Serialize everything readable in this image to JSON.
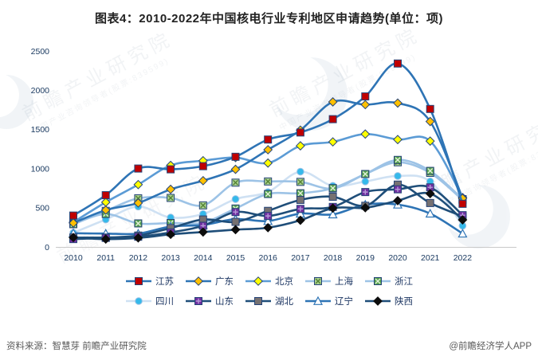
{
  "title": "图表4：2010-2022年中国核电行业专利地区申请趋势(单位：项)",
  "watermark": {
    "main": "前瞻产业研究院",
    "sub": "中国产业咨询领导者(股票:839599)"
  },
  "footer": {
    "source": "资料来源：智慧芽 前瞻产业研究院",
    "credit": "@前瞻经济学人APP"
  },
  "chart_data": {
    "type": "line",
    "title": "图表4：2010-2022年中国核电行业专利地区申请趋势(单位：项)",
    "unit": "项",
    "categories": [
      "2010",
      "2011",
      "2012",
      "2013",
      "2014",
      "2015",
      "2016",
      "2017",
      "2018",
      "2019",
      "2020",
      "2021",
      "2022"
    ],
    "ylim": [
      0,
      2500
    ],
    "yticks": [
      "0",
      "500",
      "1000",
      "1500",
      "2000",
      "2500"
    ],
    "grid": false,
    "legend_position": "bottom",
    "legend_rows": [
      [
        "江苏",
        "广东",
        "北京",
        "上海",
        "浙江"
      ],
      [
        "四川",
        "山东",
        "湖北",
        "辽宁",
        "陕西"
      ]
    ],
    "draw_order": [
      "四川",
      "上海",
      "浙江",
      "北京",
      "辽宁",
      "湖北",
      "山东",
      "陕西",
      "广东",
      "江苏"
    ],
    "series": [
      {
        "name": "江苏",
        "line": "#2e74b5",
        "marker": "square",
        "marker_color": "#c00000",
        "marker_stroke": "#264478",
        "values": [
          400,
          660,
          1000,
          990,
          1030,
          1150,
          1370,
          1460,
          1630,
          1920,
          2340,
          1760,
          550
        ]
      },
      {
        "name": "广东",
        "line": "#2e74b5",
        "marker": "diamond",
        "marker_color": "#ffc000",
        "marker_stroke": "#264478",
        "values": [
          305,
          470,
          560,
          735,
          845,
          990,
          1240,
          1490,
          1850,
          1815,
          1835,
          1600,
          620
        ]
      },
      {
        "name": "北京",
        "line": "#5b9bd5",
        "marker": "diamond",
        "marker_color": "#ffff00",
        "marker_stroke": "#264478",
        "values": [
          315,
          570,
          795,
          1040,
          1100,
          1140,
          1070,
          1290,
          1340,
          1440,
          1370,
          1350,
          630
        ]
      },
      {
        "name": "上海",
        "line": "#9dc3e6",
        "marker": "square-x",
        "marker_color": "#a9d18e",
        "marker_stroke": "#264478",
        "marker_accent": "#548235",
        "values": [
          300,
          460,
          620,
          625,
          530,
          820,
          835,
          830,
          745,
          930,
          1080,
          945,
          600
        ]
      },
      {
        "name": "浙江",
        "line": "#9dc3e6",
        "marker": "square-x",
        "marker_color": "#57a44e",
        "marker_stroke": "#264478",
        "marker_accent": "#e2efda",
        "values": [
          290,
          420,
          300,
          305,
          310,
          490,
          675,
          685,
          750,
          930,
          1110,
          970,
          610
        ]
      },
      {
        "name": "四川",
        "line": "#cfe1f3",
        "marker": "circle",
        "marker_color": "#35b9ea",
        "marker_stroke": "#9dc3e6",
        "values": [
          180,
          350,
          515,
          375,
          420,
          610,
          700,
          960,
          780,
          835,
          905,
          835,
          270
        ]
      },
      {
        "name": "山东",
        "line": "#1f4e79",
        "marker": "square-plus",
        "marker_color": "#7030a0",
        "marker_stroke": "#264478",
        "marker_accent": "#b799d9",
        "values": [
          100,
          115,
          130,
          185,
          270,
          445,
          395,
          485,
          510,
          700,
          735,
          760,
          405
        ]
      },
      {
        "name": "湖北",
        "line": "#1f4e79",
        "marker": "square",
        "marker_color": "#767171",
        "marker_stroke": "#264478",
        "values": [
          120,
          120,
          145,
          240,
          350,
          320,
          460,
          600,
          640,
          525,
          795,
          560,
          390
        ]
      },
      {
        "name": "辽宁",
        "line": "#2e74b5",
        "marker": "triangle",
        "marker_color": "#ffffff",
        "marker_stroke": "#2e74b5",
        "values": [
          175,
          170,
          170,
          260,
          280,
          355,
          330,
          425,
          415,
          540,
          540,
          425,
          170
        ]
      },
      {
        "name": "陕西",
        "line": "#1f4e79",
        "marker": "diamond",
        "marker_color": "#0d0d0d",
        "marker_stroke": "#0d0d0d",
        "values": [
          120,
          100,
          115,
          160,
          190,
          220,
          245,
          340,
          495,
          500,
          590,
          680,
          345
        ]
      }
    ]
  }
}
